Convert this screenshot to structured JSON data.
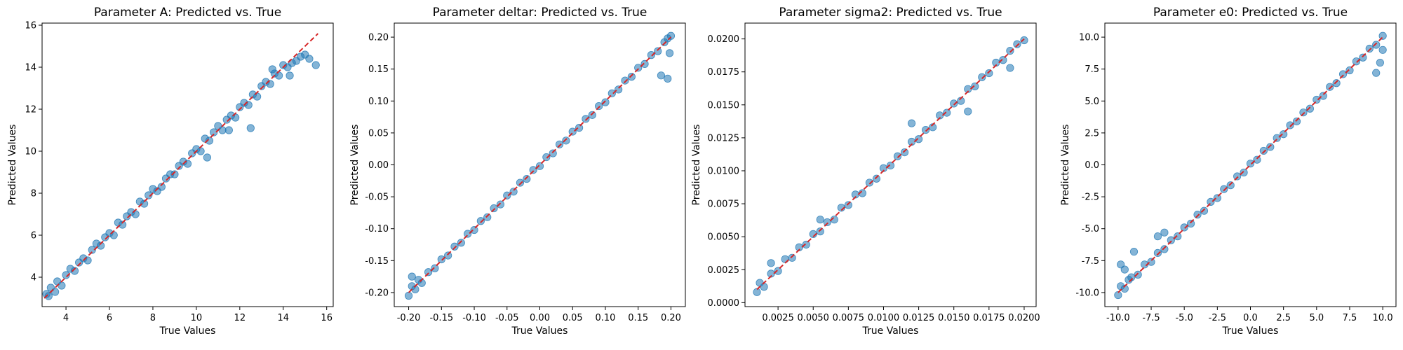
{
  "chart_data": [
    {
      "type": "scatter",
      "title": "Parameter A: Predicted vs. True",
      "xlabel": "True Values",
      "ylabel": "Predicted Values",
      "xlim": [
        2.9,
        16.3
      ],
      "ylim": [
        2.6,
        16.1
      ],
      "xticks": [
        4,
        6,
        8,
        10,
        12,
        14,
        16
      ],
      "yticks": [
        4,
        6,
        8,
        10,
        12,
        14,
        16
      ],
      "tick_decimals": 0,
      "identity_line": [
        3.0,
        15.6
      ],
      "points": [
        [
          3.1,
          3.2
        ],
        [
          3.2,
          3.1
        ],
        [
          3.3,
          3.5
        ],
        [
          3.5,
          3.3
        ],
        [
          3.6,
          3.8
        ],
        [
          3.8,
          3.6
        ],
        [
          4.0,
          4.1
        ],
        [
          4.2,
          4.4
        ],
        [
          4.4,
          4.3
        ],
        [
          4.6,
          4.7
        ],
        [
          4.8,
          4.9
        ],
        [
          5.0,
          4.8
        ],
        [
          5.2,
          5.3
        ],
        [
          5.4,
          5.6
        ],
        [
          5.6,
          5.5
        ],
        [
          5.8,
          5.9
        ],
        [
          6.0,
          6.1
        ],
        [
          6.2,
          6.0
        ],
        [
          6.4,
          6.6
        ],
        [
          6.6,
          6.5
        ],
        [
          6.8,
          6.9
        ],
        [
          7.0,
          7.1
        ],
        [
          7.2,
          7.0
        ],
        [
          7.4,
          7.6
        ],
        [
          7.6,
          7.5
        ],
        [
          7.8,
          7.9
        ],
        [
          8.0,
          8.2
        ],
        [
          8.2,
          8.1
        ],
        [
          8.4,
          8.3
        ],
        [
          8.6,
          8.7
        ],
        [
          8.8,
          8.9
        ],
        [
          9.0,
          8.9
        ],
        [
          9.2,
          9.3
        ],
        [
          9.4,
          9.5
        ],
        [
          9.6,
          9.4
        ],
        [
          9.8,
          9.9
        ],
        [
          10.0,
          10.1
        ],
        [
          10.2,
          10.0
        ],
        [
          10.4,
          10.6
        ],
        [
          10.6,
          10.5
        ],
        [
          10.8,
          10.9
        ],
        [
          11.0,
          11.2
        ],
        [
          11.2,
          11.0
        ],
        [
          11.4,
          11.5
        ],
        [
          11.6,
          11.7
        ],
        [
          11.8,
          11.6
        ],
        [
          12.0,
          12.1
        ],
        [
          12.2,
          12.3
        ],
        [
          12.4,
          12.2
        ],
        [
          12.6,
          12.7
        ],
        [
          12.8,
          12.6
        ],
        [
          13.0,
          13.1
        ],
        [
          13.2,
          13.3
        ],
        [
          13.4,
          13.2
        ],
        [
          13.6,
          13.7
        ],
        [
          13.8,
          13.6
        ],
        [
          14.0,
          14.1
        ],
        [
          14.2,
          14.0
        ],
        [
          14.4,
          14.2
        ],
        [
          14.6,
          14.3
        ],
        [
          14.8,
          14.5
        ],
        [
          15.0,
          14.6
        ],
        [
          15.2,
          14.4
        ],
        [
          15.5,
          14.1
        ],
        [
          11.5,
          11.0
        ],
        [
          12.5,
          11.1
        ],
        [
          10.5,
          9.7
        ],
        [
          14.3,
          13.6
        ],
        [
          13.5,
          13.9
        ]
      ]
    },
    {
      "type": "scatter",
      "title": "Parameter deltar: Predicted vs. True",
      "xlabel": "True Values",
      "ylabel": "Predicted Values",
      "xlim": [
        -0.222,
        0.222
      ],
      "ylim": [
        -0.222,
        0.222
      ],
      "xticks": [
        -0.2,
        -0.15,
        -0.1,
        -0.05,
        0.0,
        0.05,
        0.1,
        0.15,
        0.2
      ],
      "yticks": [
        -0.2,
        -0.15,
        -0.1,
        -0.05,
        0.0,
        0.05,
        0.1,
        0.15,
        0.2
      ],
      "tick_decimals": 2,
      "identity_line": [
        -0.2,
        0.2
      ],
      "points": [
        [
          -0.2,
          -0.205
        ],
        [
          -0.195,
          -0.19
        ],
        [
          -0.19,
          -0.195
        ],
        [
          -0.185,
          -0.18
        ],
        [
          -0.18,
          -0.185
        ],
        [
          -0.17,
          -0.168
        ],
        [
          -0.16,
          -0.162
        ],
        [
          -0.15,
          -0.148
        ],
        [
          -0.14,
          -0.142
        ],
        [
          -0.13,
          -0.128
        ],
        [
          -0.12,
          -0.122
        ],
        [
          -0.11,
          -0.108
        ],
        [
          -0.1,
          -0.102
        ],
        [
          -0.09,
          -0.088
        ],
        [
          -0.08,
          -0.082
        ],
        [
          -0.07,
          -0.068
        ],
        [
          -0.06,
          -0.062
        ],
        [
          -0.05,
          -0.048
        ],
        [
          -0.04,
          -0.042
        ],
        [
          -0.03,
          -0.028
        ],
        [
          -0.02,
          -0.022
        ],
        [
          -0.01,
          -0.008
        ],
        [
          0.0,
          -0.002
        ],
        [
          0.01,
          0.012
        ],
        [
          0.02,
          0.018
        ],
        [
          0.03,
          0.032
        ],
        [
          0.04,
          0.038
        ],
        [
          0.05,
          0.052
        ],
        [
          0.06,
          0.058
        ],
        [
          0.07,
          0.072
        ],
        [
          0.08,
          0.078
        ],
        [
          0.09,
          0.092
        ],
        [
          0.1,
          0.098
        ],
        [
          0.11,
          0.112
        ],
        [
          0.12,
          0.118
        ],
        [
          0.13,
          0.132
        ],
        [
          0.14,
          0.138
        ],
        [
          0.15,
          0.152
        ],
        [
          0.16,
          0.158
        ],
        [
          0.17,
          0.172
        ],
        [
          0.18,
          0.178
        ],
        [
          0.19,
          0.192
        ],
        [
          0.195,
          0.198
        ],
        [
          0.2,
          0.202
        ],
        [
          0.185,
          0.14
        ],
        [
          0.195,
          0.135
        ],
        [
          0.198,
          0.175
        ],
        [
          -0.195,
          -0.175
        ]
      ]
    },
    {
      "type": "scatter",
      "title": "Parameter sigma2: Predicted vs. True",
      "xlabel": "True Values",
      "ylabel": "Predicted Values",
      "xlim": [
        0.00015,
        0.02085
      ],
      "ylim": [
        -0.0003,
        0.0212
      ],
      "xticks": [
        0.0025,
        0.005,
        0.0075,
        0.01,
        0.0125,
        0.015,
        0.0175,
        0.02
      ],
      "yticks": [
        0.0,
        0.0025,
        0.005,
        0.0075,
        0.01,
        0.0125,
        0.015,
        0.0175,
        0.02
      ],
      "tick_decimals": 4,
      "identity_line": [
        0.001,
        0.02
      ],
      "points": [
        [
          0.001,
          0.0008
        ],
        [
          0.0012,
          0.0015
        ],
        [
          0.0015,
          0.0012
        ],
        [
          0.002,
          0.0022
        ],
        [
          0.0025,
          0.0024
        ],
        [
          0.003,
          0.0033
        ],
        [
          0.0035,
          0.0034
        ],
        [
          0.004,
          0.0042
        ],
        [
          0.0045,
          0.0044
        ],
        [
          0.005,
          0.0052
        ],
        [
          0.0055,
          0.0054
        ],
        [
          0.006,
          0.0061
        ],
        [
          0.0065,
          0.0063
        ],
        [
          0.007,
          0.0072
        ],
        [
          0.0075,
          0.0074
        ],
        [
          0.008,
          0.0082
        ],
        [
          0.0085,
          0.0083
        ],
        [
          0.009,
          0.0091
        ],
        [
          0.0095,
          0.0094
        ],
        [
          0.01,
          0.0102
        ],
        [
          0.0105,
          0.0104
        ],
        [
          0.011,
          0.0111
        ],
        [
          0.0115,
          0.0114
        ],
        [
          0.012,
          0.0122
        ],
        [
          0.0125,
          0.0124
        ],
        [
          0.013,
          0.0131
        ],
        [
          0.0135,
          0.0133
        ],
        [
          0.014,
          0.0142
        ],
        [
          0.0145,
          0.0144
        ],
        [
          0.015,
          0.0151
        ],
        [
          0.0155,
          0.0153
        ],
        [
          0.016,
          0.0162
        ],
        [
          0.0165,
          0.0164
        ],
        [
          0.017,
          0.0171
        ],
        [
          0.0175,
          0.0174
        ],
        [
          0.018,
          0.0182
        ],
        [
          0.0185,
          0.0184
        ],
        [
          0.019,
          0.0191
        ],
        [
          0.0195,
          0.0196
        ],
        [
          0.02,
          0.0199
        ],
        [
          0.0055,
          0.0063
        ],
        [
          0.012,
          0.0136
        ],
        [
          0.016,
          0.0145
        ],
        [
          0.019,
          0.0178
        ],
        [
          0.002,
          0.003
        ]
      ]
    },
    {
      "type": "scatter",
      "title": "Parameter e0: Predicted vs. True",
      "xlabel": "True Values",
      "ylabel": "Predicted Values",
      "xlim": [
        -11.0,
        11.0
      ],
      "ylim": [
        -11.1,
        11.1
      ],
      "xticks": [
        -10.0,
        -7.5,
        -5.0,
        -2.5,
        0.0,
        2.5,
        5.0,
        7.5,
        10.0
      ],
      "yticks": [
        -10.0,
        -7.5,
        -5.0,
        -2.5,
        0.0,
        2.5,
        5.0,
        7.5,
        10.0
      ],
      "tick_decimals": 1,
      "identity_line": [
        -10.0,
        10.0
      ],
      "points": [
        [
          -10.0,
          -10.2
        ],
        [
          -9.8,
          -9.5
        ],
        [
          -9.5,
          -9.7
        ],
        [
          -9.2,
          -9.0
        ],
        [
          -9.0,
          -8.8
        ],
        [
          -8.5,
          -8.6
        ],
        [
          -8.0,
          -7.8
        ],
        [
          -7.5,
          -7.6
        ],
        [
          -7.0,
          -6.9
        ],
        [
          -6.5,
          -6.6
        ],
        [
          -6.0,
          -5.9
        ],
        [
          -5.5,
          -5.6
        ],
        [
          -5.0,
          -4.9
        ],
        [
          -4.5,
          -4.6
        ],
        [
          -4.0,
          -3.9
        ],
        [
          -3.5,
          -3.6
        ],
        [
          -3.0,
          -2.9
        ],
        [
          -2.5,
          -2.6
        ],
        [
          -2.0,
          -1.9
        ],
        [
          -1.5,
          -1.6
        ],
        [
          -1.0,
          -0.9
        ],
        [
          -0.5,
          -0.6
        ],
        [
          0.0,
          0.1
        ],
        [
          0.5,
          0.4
        ],
        [
          1.0,
          1.1
        ],
        [
          1.5,
          1.4
        ],
        [
          2.0,
          2.1
        ],
        [
          2.5,
          2.4
        ],
        [
          3.0,
          3.1
        ],
        [
          3.5,
          3.4
        ],
        [
          4.0,
          4.1
        ],
        [
          4.5,
          4.4
        ],
        [
          5.0,
          5.1
        ],
        [
          5.5,
          5.4
        ],
        [
          6.0,
          6.1
        ],
        [
          6.5,
          6.4
        ],
        [
          7.0,
          7.1
        ],
        [
          7.5,
          7.4
        ],
        [
          8.0,
          8.1
        ],
        [
          8.5,
          8.4
        ],
        [
          9.0,
          9.1
        ],
        [
          9.5,
          9.4
        ],
        [
          10.0,
          10.1
        ],
        [
          -9.8,
          -7.8
        ],
        [
          -9.5,
          -8.2
        ],
        [
          -8.8,
          -6.8
        ],
        [
          -7.0,
          -5.6
        ],
        [
          -6.5,
          -5.3
        ],
        [
          9.5,
          7.2
        ],
        [
          9.8,
          8.0
        ],
        [
          10.0,
          9.0
        ]
      ]
    }
  ],
  "colors": {
    "point": "#1f77b4",
    "identity_line": "#d62728",
    "axes": "#000000"
  }
}
